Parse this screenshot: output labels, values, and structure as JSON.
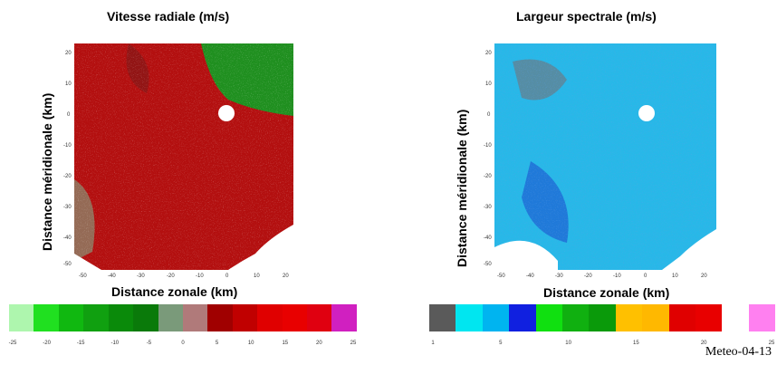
{
  "left": {
    "title": "Vitesse radiale (m/s)",
    "xlabel": "Distance zonale (km)",
    "ylabel": "Distance méridionale (km)",
    "y_ticks": [
      "20",
      "10",
      "0",
      "-10",
      "-20",
      "-30",
      "-40",
      "-50"
    ],
    "x_ticks": [
      "-50",
      "-40",
      "-30",
      "-20",
      "-10",
      "0",
      "10",
      "20"
    ],
    "colorbar_ticks": [
      "-25",
      "-20",
      "-15",
      "-10",
      "-5",
      "0",
      "5",
      "10",
      "15",
      "20",
      "25"
    ],
    "colorbar_colors": [
      "#aef6ae",
      "#20e020",
      "#10b810",
      "#10a010",
      "#0a8a0a",
      "#0a7a0a",
      "#7a9a7a",
      "#b07a7a",
      "#a00000",
      "#c00000",
      "#e00000",
      "#e80000",
      "#e00010",
      "#d020c0"
    ]
  },
  "right": {
    "title": "Largeur spectrale (m/s)",
    "xlabel": "Distance zonale (km)",
    "ylabel": "Distance méridionale (km)",
    "y_ticks": [
      "20",
      "10",
      "0",
      "-10",
      "-20",
      "-30",
      "-40",
      "-50"
    ],
    "x_ticks": [
      "-50",
      "-40",
      "-30",
      "-20",
      "-10",
      "0",
      "10",
      "20"
    ],
    "colorbar_ticks": [
      "1",
      "5",
      "10",
      "15",
      "20",
      "25"
    ],
    "colorbar_colors": [
      "#5a5a5a",
      "#00e6f0",
      "#00b4f0",
      "#1020e0",
      "#10e010",
      "#10b010",
      "#0a9a0a",
      "#ffc000",
      "#ffb800",
      "#e00000",
      "#e80000",
      "#ffffff",
      "#ff80f0"
    ]
  },
  "footer": "Meteo-04-13"
}
